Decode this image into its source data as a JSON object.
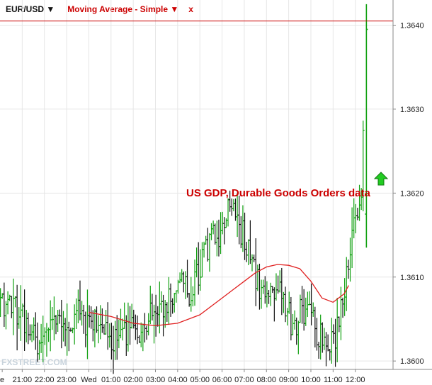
{
  "toolbar": {
    "symbol_label": "EUR/USD ▼",
    "indicator_label": "Moving Average - Simple ▼",
    "close_label": "x"
  },
  "watermark": "FXSTREET.COM",
  "colors": {
    "up": "#10a010",
    "down": "#111111",
    "ma": "#e02020",
    "hline": "#cc0000",
    "annotation": "#cc0000",
    "arrow": "#22cc22",
    "grid": "#e6e6e6"
  },
  "chart_data": {
    "type": "ohlc",
    "symbol": "EUR/USD",
    "indicator": "Moving Average - Simple",
    "ylim": [
      1.3599,
      1.3643
    ],
    "y_ticks": [
      "1.3600",
      "1.3610",
      "1.3620",
      "1.3630",
      "1.3640"
    ],
    "y_tick_values": [
      1.36,
      1.361,
      1.362,
      1.363,
      1.364
    ],
    "x_ticks": [
      "e",
      "21:00",
      "22:00",
      "23:00",
      "Wed",
      "01:00",
      "02:00",
      "03:00",
      "04:00",
      "05:00",
      "06:00",
      "07:00",
      "08:00",
      "09:00",
      "10:00",
      "11:00",
      "12:00"
    ],
    "x_tick_hours": [
      -0.9,
      0,
      1,
      2,
      3,
      4,
      5,
      6,
      7,
      8,
      9,
      10,
      11,
      12,
      13,
      14,
      15
    ],
    "xlim_hours": [
      -1,
      16.7
    ],
    "horizontal_line": 1.36405,
    "annotation": "US GDP, Durable Goods Orders data",
    "ma_points": [
      [
        3.0,
        1.36058
      ],
      [
        4.0,
        1.36053
      ],
      [
        5.0,
        1.36045
      ],
      [
        6.0,
        1.36042
      ],
      [
        7.0,
        1.36045
      ],
      [
        8.0,
        1.36055
      ],
      [
        9.0,
        1.36075
      ],
      [
        9.5,
        1.36085
      ],
      [
        10.0,
        1.36095
      ],
      [
        10.5,
        1.36105
      ],
      [
        11.0,
        1.36112
      ],
      [
        11.5,
        1.36115
      ],
      [
        12.0,
        1.36114
      ],
      [
        12.5,
        1.3611
      ],
      [
        13.0,
        1.36095
      ],
      [
        13.5,
        1.36075
      ],
      [
        14.0,
        1.3607
      ],
      [
        14.5,
        1.3608
      ],
      [
        14.7,
        1.3609
      ]
    ],
    "price_path": [
      [
        -1.0,
        1.3606
      ],
      [
        -0.6,
        1.3608
      ],
      [
        -0.3,
        1.3606
      ],
      [
        0.0,
        1.3605
      ],
      [
        0.4,
        1.3604
      ],
      [
        0.7,
        1.3602
      ],
      [
        1.0,
        1.3604
      ],
      [
        1.5,
        1.3606
      ],
      [
        2.0,
        1.3605
      ],
      [
        2.6,
        1.3606
      ],
      [
        3.0,
        1.3604
      ],
      [
        3.5,
        1.3605
      ],
      [
        4.0,
        1.3603
      ],
      [
        4.4,
        1.3602
      ],
      [
        4.8,
        1.3604
      ],
      [
        5.2,
        1.3603
      ],
      [
        5.6,
        1.3605
      ],
      [
        6.0,
        1.3607
      ],
      [
        6.4,
        1.3606
      ],
      [
        6.8,
        1.3608
      ],
      [
        7.2,
        1.3609
      ],
      [
        7.6,
        1.3608
      ],
      [
        8.0,
        1.3611
      ],
      [
        8.4,
        1.3614
      ],
      [
        8.8,
        1.3615
      ],
      [
        9.2,
        1.3617
      ],
      [
        9.5,
        1.3619
      ],
      [
        9.8,
        1.3616
      ],
      [
        10.2,
        1.3613
      ],
      [
        10.5,
        1.361
      ],
      [
        10.9,
        1.3607
      ],
      [
        11.2,
        1.3608
      ],
      [
        11.5,
        1.361
      ],
      [
        11.8,
        1.3607
      ],
      [
        12.2,
        1.3604
      ],
      [
        12.6,
        1.3606
      ],
      [
        13.0,
        1.3605
      ],
      [
        13.4,
        1.3603
      ],
      [
        13.8,
        1.3602
      ],
      [
        14.1,
        1.3603
      ],
      [
        14.4,
        1.3607
      ],
      [
        14.6,
        1.361
      ],
      [
        14.8,
        1.3614
      ],
      [
        15.0,
        1.3617
      ],
      [
        15.15,
        1.3619
      ],
      [
        15.3,
        1.3618
      ],
      [
        15.42,
        1.364
      ]
    ]
  }
}
